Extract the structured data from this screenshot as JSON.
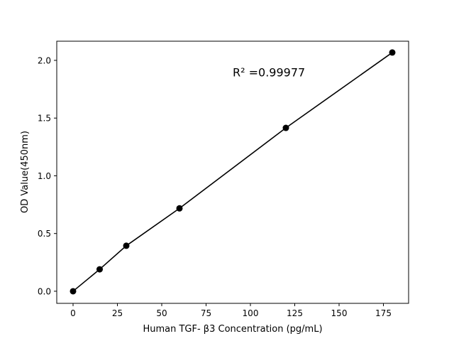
{
  "chart_data": {
    "type": "line",
    "title": "",
    "xlabel": "Human TGF- β3 Concentration (pg/mL)",
    "ylabel": "OD Value(450nm)",
    "xlim": [
      -9.2,
      189.2
    ],
    "ylim": [
      -0.105,
      2.166
    ],
    "xticks": [
      0,
      25,
      50,
      75,
      100,
      125,
      150,
      175
    ],
    "xtick_labels": [
      "0",
      "25",
      "50",
      "75",
      "100",
      "125",
      "150",
      "175"
    ],
    "yticks": [
      0.0,
      0.5,
      1.0,
      1.5,
      2.0
    ],
    "ytick_labels": [
      "0.0",
      "0.5",
      "1.0",
      "1.5",
      "2.0"
    ],
    "grid": false,
    "series": [
      {
        "x": [
          0,
          15,
          30,
          60,
          120,
          180
        ],
        "y": [
          0.0,
          0.19,
          0.394,
          0.718,
          1.415,
          2.068
        ],
        "color": "#000000",
        "marker": "circle"
      }
    ],
    "annotation": {
      "text": "R² =0.99977",
      "x": 90,
      "y": 1.86
    }
  }
}
